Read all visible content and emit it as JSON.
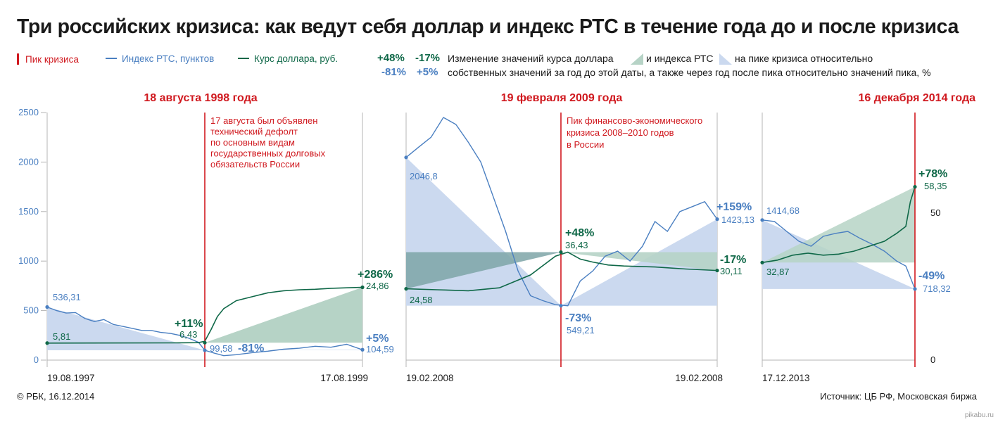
{
  "title": "Три российских кризиса: как ведут себя доллар и индекс РТС в течение года до и после кризиса",
  "legend": {
    "peak": "Пик кризиса",
    "rts": "Индекс РТС, пунктов",
    "usd": "Курс доллара, руб.",
    "example_usd_up": "+48%",
    "example_usd_down": "-17%",
    "example_rts_down": "-81%",
    "example_rts_up": "+5%",
    "desc1_a": "Изменение значений курса доллара",
    "desc1_b": "и индекса РТС",
    "desc1_c": "на пике кризиса относительно",
    "desc2": "собственных значений за год до этой даты, а также через год после пика относительно значений пика, %"
  },
  "footer": {
    "left": "© РБК, 16.12.2014",
    "right": "Источник: ЦБ РФ, Московская биржа",
    "watermark": "pikabu.ru"
  },
  "colors": {
    "rts": "#4a7fc1",
    "usd": "#0f6848",
    "peak": "#d0191f",
    "rts_fill": "#cbd9ef",
    "usd_fill": "#b6d3c6",
    "overlap_fill": "#7ea5a7",
    "axis": "#b4b4b4",
    "text_dark": "#1a1a1a",
    "title_red": "#d0191f"
  },
  "chart_data": [
    {
      "type": "line",
      "title": "18 августа 1998 года",
      "x_start_label": "19.08.1997",
      "x_end_label": "17.08.1999",
      "rts_axis": {
        "ticks": [
          "0",
          "500",
          "1000",
          "1500",
          "2000",
          "2500"
        ],
        "ylim": [
          0,
          2500
        ]
      },
      "annotation": "17 августа был объявлен технический дефолт по основным видам государственных долговых обязательств России",
      "annotation_lines": [
        "17 августа был объявлен",
        "технический дефолт",
        "по основным видам",
        "государственных долговых",
        "обязательств России"
      ],
      "series": [
        {
          "name": "Индекс РТС, пунктов",
          "axis": "left",
          "x": [
            0,
            0.03,
            0.06,
            0.09,
            0.12,
            0.15,
            0.18,
            0.21,
            0.24,
            0.27,
            0.3,
            0.33,
            0.36,
            0.39,
            0.42,
            0.45,
            0.48,
            0.5,
            0.53,
            0.56,
            0.6,
            0.65,
            0.7,
            0.75,
            0.8,
            0.85,
            0.9,
            0.95,
            1.0
          ],
          "y": [
            536.31,
            500,
            475,
            480,
            420,
            390,
            410,
            360,
            340,
            320,
            300,
            300,
            280,
            270,
            250,
            220,
            180,
            99.58,
            70,
            45,
            55,
            75,
            90,
            110,
            120,
            140,
            130,
            160,
            104.59
          ]
        },
        {
          "name": "Курс доллара, руб.",
          "axis": "left",
          "x": [
            0,
            0.4,
            0.48,
            0.5,
            0.52,
            0.54,
            0.56,
            0.6,
            0.65,
            0.7,
            0.75,
            0.8,
            0.85,
            0.9,
            0.95,
            1.0
          ],
          "y": [
            172,
            174,
            176,
            190,
            310,
            440,
            520,
            600,
            640,
            680,
            700,
            710,
            715,
            725,
            730,
            735
          ]
        }
      ],
      "points": {
        "rts_start": "536,31",
        "rts_peak": "99,58",
        "rts_end": "104,59",
        "usd_start": "5,81",
        "usd_peak": "6,43",
        "usd_end": "24,86"
      },
      "changes": {
        "usd_to_peak": "+11%",
        "usd_after": "+286%",
        "rts_to_peak": "-81%",
        "rts_after": "+5%"
      }
    },
    {
      "type": "line",
      "title": "19 февраля 2009 года",
      "x_start_label": "19.02.2008",
      "x_end_label": "19.02.2008",
      "annotation": "Пик финансово-экономического кризиса 2008–2010 годов в России",
      "annotation_lines": [
        "Пик финансово-экономического",
        "кризиса 2008–2010 годов",
        "в России"
      ],
      "series": [
        {
          "name": "Индекс РТС, пунктов",
          "axis": "left",
          "x": [
            0,
            0.04,
            0.08,
            0.12,
            0.16,
            0.2,
            0.24,
            0.28,
            0.32,
            0.36,
            0.4,
            0.44,
            0.48,
            0.52,
            0.56,
            0.6,
            0.64,
            0.68,
            0.72,
            0.76,
            0.8,
            0.84,
            0.88,
            0.92,
            0.96,
            1.0
          ],
          "y": [
            2046.8,
            2150,
            2250,
            2450,
            2380,
            2200,
            2000,
            1650,
            1300,
            900,
            650,
            600,
            560,
            549.21,
            800,
            900,
            1050,
            1100,
            1000,
            1150,
            1400,
            1300,
            1500,
            1550,
            1600,
            1423.13
          ]
        },
        {
          "name": "Курс доллара, руб.",
          "axis": "left",
          "x": [
            0,
            0.1,
            0.2,
            0.3,
            0.4,
            0.48,
            0.52,
            0.56,
            0.6,
            0.65,
            0.7,
            0.8,
            0.9,
            1.0
          ],
          "y": [
            720,
            710,
            700,
            730,
            860,
            1050,
            1090,
            1020,
            990,
            960,
            950,
            940,
            920,
            905
          ]
        }
      ],
      "points": {
        "rts_start": "2046,8",
        "rts_peak": "549,21",
        "rts_end": "1423,13",
        "usd_start": "24,58",
        "usd_peak": "36,43",
        "usd_end": "30,11"
      },
      "changes": {
        "usd_to_peak": "+48%",
        "usd_after": "-17%",
        "rts_to_peak": "-73%",
        "rts_after": "+159%"
      }
    },
    {
      "type": "line",
      "title": "16 декабря 2014 года",
      "x_start_label": "17.12.2013",
      "usd_axis": {
        "ticks": [
          "0",
          "50"
        ],
        "ylim": [
          0,
          50
        ]
      },
      "series": [
        {
          "name": "Индекс РТС, пунктов",
          "axis": "left",
          "x": [
            0,
            0.08,
            0.16,
            0.24,
            0.32,
            0.4,
            0.48,
            0.56,
            0.64,
            0.72,
            0.8,
            0.88,
            0.94,
            1.0
          ],
          "y": [
            1414.68,
            1400,
            1300,
            1200,
            1150,
            1250,
            1280,
            1300,
            1230,
            1170,
            1100,
            1000,
            950,
            718.32
          ]
        },
        {
          "name": "Курс доллара, руб.",
          "axis": "left",
          "x": [
            0,
            0.1,
            0.2,
            0.3,
            0.4,
            0.5,
            0.6,
            0.7,
            0.8,
            0.88,
            0.94,
            0.97,
            1.0
          ],
          "y": [
            985,
            1010,
            1060,
            1080,
            1060,
            1070,
            1100,
            1150,
            1200,
            1280,
            1350,
            1600,
            1750
          ]
        }
      ],
      "points": {
        "rts_start": "1414,68",
        "rts_end": "718,32",
        "usd_start": "32,87",
        "usd_end": "58,35"
      },
      "changes": {
        "usd_to_peak": "+78%",
        "rts_to_peak": "-49%"
      }
    }
  ]
}
